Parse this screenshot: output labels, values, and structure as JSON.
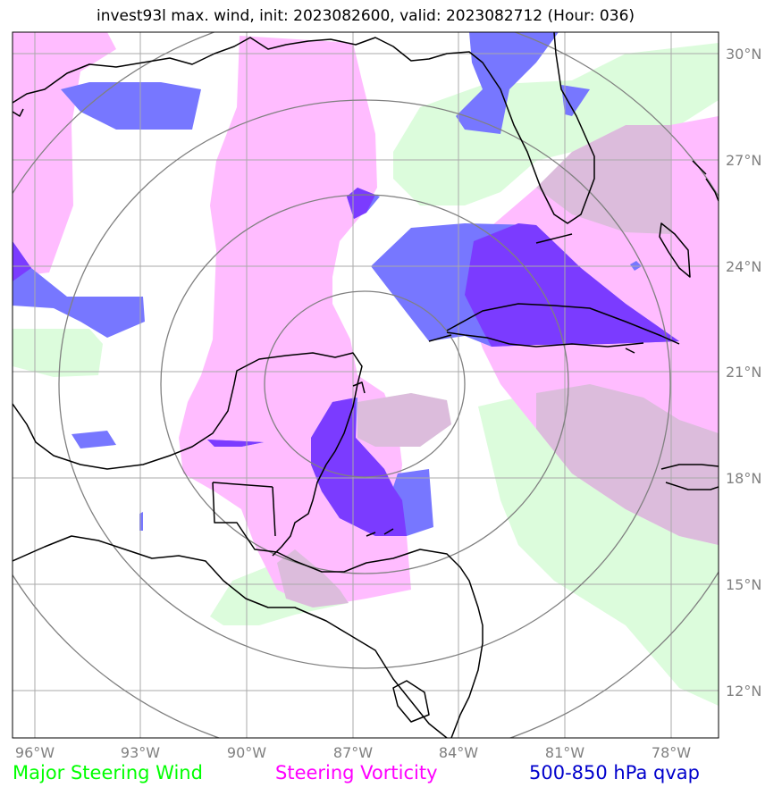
{
  "title": "invest93l max. wind, init: 2023082600, valid: 2023082712 (Hour: 036)",
  "map": {
    "lon_ticks": [
      "96°W",
      "93°W",
      "90°W",
      "87°W",
      "84°W",
      "81°W",
      "78°W"
    ],
    "lat_ticks": [
      "30°N",
      "27°N",
      "24°N",
      "21°N",
      "18°N",
      "15°N",
      "12°N"
    ]
  },
  "legend": {
    "wind": {
      "label": "Major Steering Wind",
      "color": "#00ff00",
      "fill": "#dcfcdc"
    },
    "vorticity": {
      "label": "Steering Vorticity",
      "color": "#ff00ff",
      "fill": "#ffbcff"
    },
    "qvap": {
      "label": "500-850 hPa qvap",
      "color": "#0000cc",
      "fill": "#7777ff"
    }
  },
  "colors": {
    "overlap_wind_vort": "#dcbcdc",
    "overlap_vort_qvap": "#7b3bff",
    "grid": "#aaaaaa",
    "range_rings": "#808080",
    "coastline": "#000000"
  }
}
